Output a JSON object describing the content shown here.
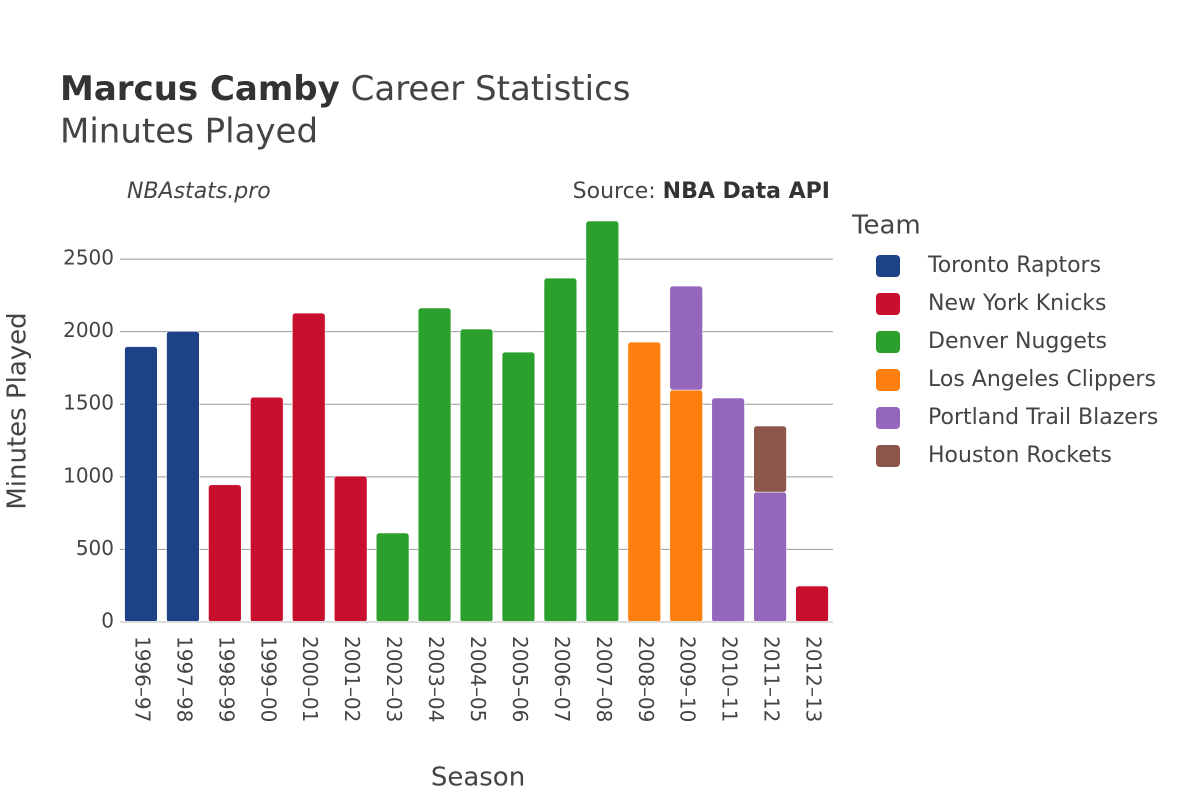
{
  "chart_data": {
    "type": "stacked-bar",
    "title": {
      "bold": "Marcus Camby",
      "rest": "Career Statistics"
    },
    "subtitle": "Minutes Played",
    "annotations": {
      "site": "NBAstats.pro",
      "source_label": "Source:",
      "source": "NBA Data API"
    },
    "x_label": "Season",
    "y_label": "Minutes Played",
    "legend_title": "Team",
    "categories": [
      "1996–97",
      "1997–98",
      "1998–99",
      "1999–00",
      "2000–01",
      "2001–02",
      "2002–03",
      "2003–04",
      "2004–05",
      "2005–06",
      "2006–07",
      "2007–08",
      "2008–09",
      "2009–10",
      "2010–11",
      "2011–12",
      "2012–13"
    ],
    "series": [
      {
        "name": "Toronto Raptors",
        "color": "#1e4287",
        "values": [
          1897,
          2002,
          null,
          null,
          null,
          null,
          null,
          null,
          null,
          null,
          null,
          null,
          null,
          null,
          null,
          null,
          null
        ]
      },
      {
        "name": "New York Knicks",
        "color": "#c8102e",
        "values": [
          null,
          null,
          945,
          1548,
          2128,
          1005,
          null,
          null,
          null,
          null,
          null,
          null,
          null,
          null,
          null,
          null,
          248
        ]
      },
      {
        "name": "Denver Nuggets",
        "color": "#2ca02c",
        "values": [
          null,
          null,
          null,
          null,
          null,
          null,
          613,
          2163,
          2018,
          1859,
          2369,
          2762,
          null,
          null,
          null,
          null,
          null
        ]
      },
      {
        "name": "Los Angeles Clippers",
        "color": "#ff7f0e",
        "values": [
          null,
          null,
          null,
          null,
          null,
          null,
          null,
          null,
          null,
          null,
          null,
          null,
          1928,
          1598,
          null,
          null,
          null
        ]
      },
      {
        "name": "Portland Trail Blazers",
        "color": "#9467bd",
        "values": [
          null,
          null,
          null,
          null,
          null,
          null,
          null,
          null,
          null,
          null,
          null,
          null,
          null,
          716,
          1543,
          895,
          null
        ]
      },
      {
        "name": "Houston Rockets",
        "color": "#8c564b",
        "values": [
          null,
          null,
          null,
          null,
          null,
          null,
          null,
          null,
          null,
          null,
          null,
          null,
          null,
          null,
          null,
          455,
          null
        ]
      }
    ],
    "ylim": [
      0,
      2900
    ],
    "yticks": [
      0,
      500,
      1000,
      1500,
      2000,
      2500
    ],
    "grid": true,
    "legend": "right"
  }
}
